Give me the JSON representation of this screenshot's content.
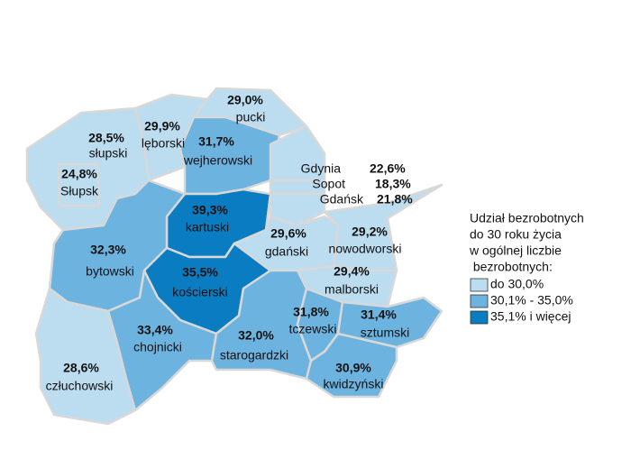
{
  "legend": {
    "title_lines": [
      "Udział bezrobotnych",
      "do 30 roku życia",
      "w ogólnej liczbie",
      " bezrobotnych:"
    ],
    "items": [
      {
        "label": "do 30,0%",
        "color": "#bcdcf0"
      },
      {
        "label": "30,1% - 35,0%",
        "color": "#6db3e0"
      },
      {
        "label": "35,1% i więcej",
        "color": "#0a7cc1"
      }
    ]
  },
  "regions": [
    {
      "name": "pucki",
      "value": 29.0,
      "value_label": "29,0%",
      "color": "#bcdcf0"
    },
    {
      "name": "lęborski",
      "value": 29.9,
      "value_label": "29,9%",
      "color": "#bcdcf0"
    },
    {
      "name": "słupski",
      "value": 28.5,
      "value_label": "28,5%",
      "color": "#bcdcf0"
    },
    {
      "name": "Słupsk",
      "value": 24.8,
      "value_label": "24,8%",
      "color": "#bcdcf0"
    },
    {
      "name": "wejherowski",
      "value": 31.7,
      "value_label": "31,7%",
      "color": "#6db3e0"
    },
    {
      "name": "kartuski",
      "value": 39.3,
      "value_label": "39,3%",
      "color": "#0a7cc1"
    },
    {
      "name": "bytowski",
      "value": 32.3,
      "value_label": "32,3%",
      "color": "#6db3e0"
    },
    {
      "name": "kościerski",
      "value": 35.5,
      "value_label": "35,5%",
      "color": "#0a7cc1"
    },
    {
      "name": "gdański",
      "value": 29.6,
      "value_label": "29,6%",
      "color": "#bcdcf0"
    },
    {
      "name": "nowodworski",
      "value": 29.2,
      "value_label": "29,2%",
      "color": "#bcdcf0"
    },
    {
      "name": "malborski",
      "value": 29.4,
      "value_label": "29,4%",
      "color": "#bcdcf0"
    },
    {
      "name": "chojnicki",
      "value": 33.4,
      "value_label": "33,4%",
      "color": "#6db3e0"
    },
    {
      "name": "starogardzki",
      "value": 32.0,
      "value_label": "32,0%",
      "color": "#6db3e0"
    },
    {
      "name": "tczewski",
      "value": 31.8,
      "value_label": "31,8%",
      "color": "#6db3e0"
    },
    {
      "name": "sztumski",
      "value": 31.4,
      "value_label": "31,4%",
      "color": "#6db3e0"
    },
    {
      "name": "kwidzyński",
      "value": 30.9,
      "value_label": "30,9%",
      "color": "#6db3e0"
    },
    {
      "name": "człuchowski",
      "value": 28.6,
      "value_label": "28,6%",
      "color": "#bcdcf0"
    },
    {
      "name": "Gdynia",
      "value": 22.6,
      "value_label": "22,6%",
      "color": "#bcdcf0"
    },
    {
      "name": "Sopot",
      "value": 18.3,
      "value_label": "18,3%",
      "color": "#bcdcf0"
    },
    {
      "name": "Gdańsk",
      "value": 21.8,
      "value_label": "21,8%",
      "color": "#bcdcf0"
    }
  ]
}
